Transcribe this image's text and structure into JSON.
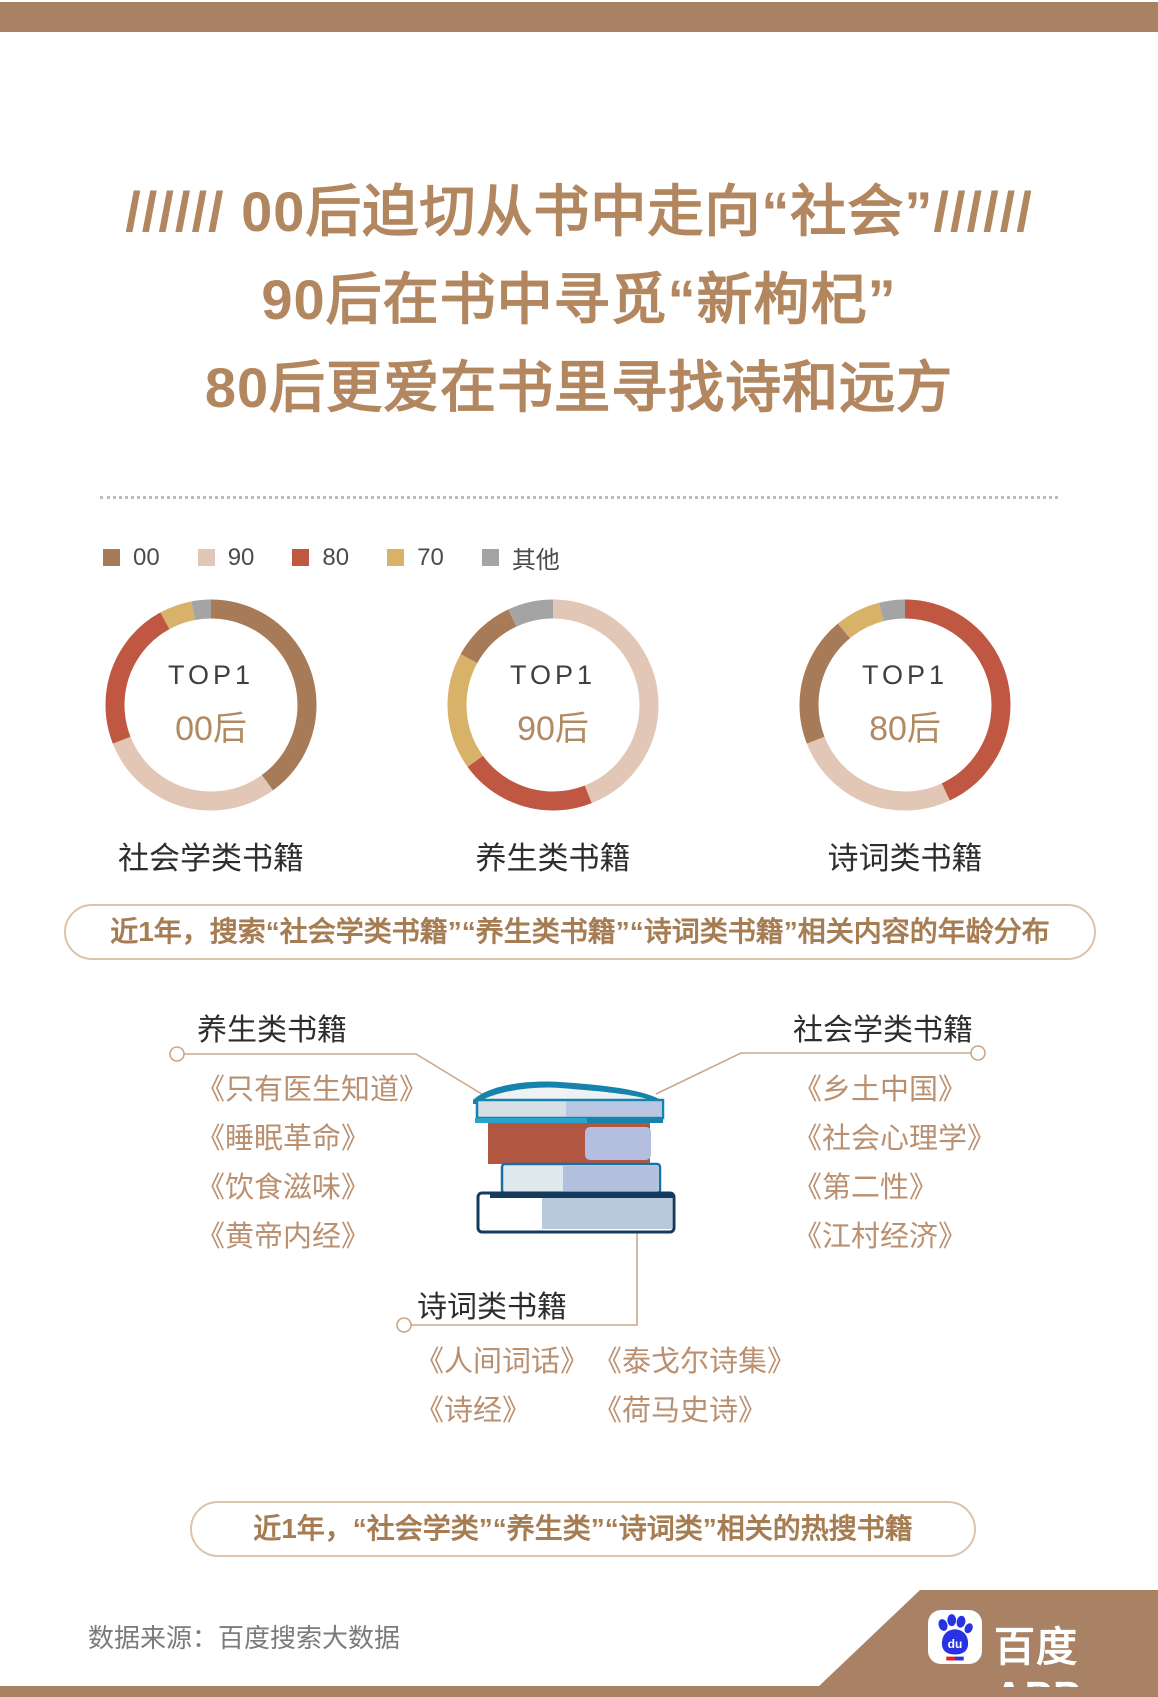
{
  "title_lines": [
    "////// 00后迫切从书中走向“社会”//////",
    "90后在书中寻觅“新枸杞”",
    "80后更爱在书里寻找诗和远方"
  ],
  "colors": {
    "00": "#a87b58",
    "90": "#e2c6b6",
    "80": "#bf5742",
    "70": "#d8b269",
    "其他": "#a4a4a4",
    "baidu_blue": "#2932e1",
    "baidu_red": "#e1251b"
  },
  "legend": {
    "items": [
      {
        "label": "00",
        "color": "#a87b58"
      },
      {
        "label": "90",
        "color": "#e2c6b6"
      },
      {
        "label": "80",
        "color": "#bf5742"
      },
      {
        "label": "70",
        "color": "#d8b269"
      },
      {
        "label": "其他",
        "color": "#a4a4a4"
      }
    ]
  },
  "chart_data": [
    {
      "type": "pie",
      "title": "社会学类书籍",
      "center_label": {
        "top": "TOP1",
        "value": "00后"
      },
      "unit": "%",
      "series": [
        {
          "name": "00",
          "value": 40
        },
        {
          "name": "90",
          "value": 29
        },
        {
          "name": "80",
          "value": 23
        },
        {
          "name": "70",
          "value": 5
        },
        {
          "name": "其他",
          "value": 3
        }
      ]
    },
    {
      "type": "pie",
      "title": "养生类书籍",
      "center_label": {
        "top": "TOP1",
        "value": "90后"
      },
      "unit": "%",
      "series": [
        {
          "name": "90",
          "value": 44
        },
        {
          "name": "80",
          "value": 21
        },
        {
          "name": "70",
          "value": 18
        },
        {
          "name": "00",
          "value": 10
        },
        {
          "name": "其他",
          "value": 7
        }
      ]
    },
    {
      "type": "pie",
      "title": "诗词类书籍",
      "center_label": {
        "top": "TOP1",
        "value": "80后"
      },
      "unit": "%",
      "series": [
        {
          "name": "80",
          "value": 43
        },
        {
          "name": "90",
          "value": 26
        },
        {
          "name": "00",
          "value": 20
        },
        {
          "name": "70",
          "value": 7
        },
        {
          "name": "其他",
          "value": 4
        }
      ]
    }
  ],
  "caption1": "近1年，搜索“社会学类书籍”“养生类书籍”“诗词类书籍”相关内容的年龄分布",
  "caption2": "近1年，“社会学类”“养生类”“诗词类”相关的热搜书籍",
  "books": {
    "group1": {
      "title": "养生类书籍",
      "items": [
        "《只有医生知道》",
        "《睡眠革命》",
        "《饮食滋味》",
        "《黄帝内经》"
      ]
    },
    "group2": {
      "title": "社会学类书籍",
      "items": [
        "《乡土中国》",
        "《社会心理学》",
        "《第二性》",
        "《江村经济》"
      ]
    },
    "group3": {
      "title": "诗词类书籍",
      "col1": [
        "《人间词话》",
        "《诗经》"
      ],
      "col2": [
        "《泰戈尔诗集》",
        "《荷马史诗》"
      ]
    }
  },
  "footer": {
    "source": "数据来源：百度搜索大数据",
    "brand": "百度APP",
    "brand_icon_text": "du"
  }
}
